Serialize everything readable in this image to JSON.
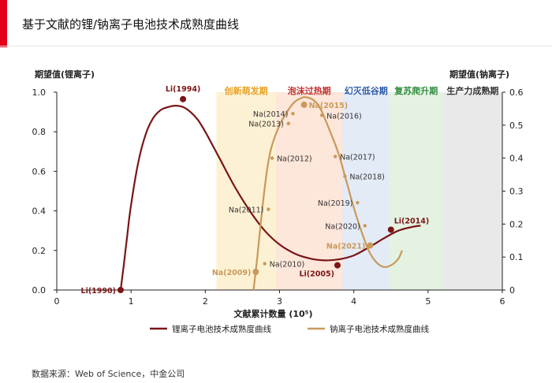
{
  "page": {
    "title": "基于文献的锂/钠离子电池技术成熟度曲线",
    "source": "数据来源：Web of Science，中金公司",
    "accent_color": "#e2001a"
  },
  "chart_data": {
    "type": "line",
    "xlabel": "文献累计数量 (10⁵)",
    "ylabel_left": "期望值(锂离子)",
    "ylabel_right": "期望值(钠离子)",
    "xlim": [
      0,
      6
    ],
    "ylim_left": [
      0,
      1.0
    ],
    "ylim_right": [
      0,
      0.6
    ],
    "x_ticks": [
      0,
      1,
      2,
      3,
      4,
      5,
      6
    ],
    "y_ticks_left": [
      0.0,
      0.2,
      0.4,
      0.6,
      0.8,
      1.0
    ],
    "y_ticks_right": [
      0,
      0.1,
      0.2,
      0.3,
      0.4,
      0.5,
      0.6
    ],
    "tick_labels_x": [
      "0",
      "1",
      "2",
      "3",
      "4",
      "5",
      "6"
    ],
    "tick_labels_left": [
      "0.0",
      "0.2",
      "0.4",
      "0.6",
      "0.8",
      "1.0"
    ],
    "tick_labels_right": [
      "0",
      "0.1",
      "0.2",
      "0.3",
      "0.4",
      "0.5",
      "0.6"
    ],
    "grid": false,
    "legend_position": "bottom",
    "phases": [
      {
        "name": "创新萌发期",
        "x_range": [
          2.15,
          2.95
        ],
        "color": "#fdf1d3",
        "label_color": "#e8a020"
      },
      {
        "name": "泡沫过热期",
        "x_range": [
          2.95,
          3.85
        ],
        "color": "#fde6da",
        "label_color": "#c03030"
      },
      {
        "name": "幻灭低谷期",
        "x_range": [
          3.85,
          4.48
        ],
        "color": "#e3ebf7",
        "label_color": "#2f5aa8"
      },
      {
        "name": "复苏爬升期",
        "x_range": [
          4.48,
          5.2
        ],
        "color": "#e4f2e2",
        "label_color": "#2e8b3a"
      },
      {
        "name": "生产力成熟期",
        "x_range": [
          5.2,
          6.0
        ],
        "color": "#e9e9e9",
        "label_color": "#333333"
      }
    ],
    "series": [
      {
        "name": "锂离子电池技术成熟度曲线",
        "axis": "left",
        "color": "#7a1515",
        "x": [
          0.86,
          0.9,
          0.95,
          1.0,
          1.1,
          1.2,
          1.3,
          1.4,
          1.5,
          1.6,
          1.7,
          1.8,
          1.9,
          2.0,
          2.1,
          2.2,
          2.4,
          2.6,
          2.8,
          3.0,
          3.2,
          3.4,
          3.6,
          3.8,
          4.0,
          4.2,
          4.4,
          4.6,
          4.8,
          4.9
        ],
        "y": [
          0.0,
          0.12,
          0.28,
          0.43,
          0.65,
          0.79,
          0.87,
          0.91,
          0.925,
          0.932,
          0.925,
          0.9,
          0.86,
          0.8,
          0.73,
          0.66,
          0.52,
          0.4,
          0.3,
          0.23,
          0.185,
          0.16,
          0.15,
          0.155,
          0.175,
          0.215,
          0.26,
          0.3,
          0.32,
          0.325
        ]
      },
      {
        "name": "钠离子电池技术成熟度曲线",
        "axis": "right",
        "color": "#c9995a",
        "x": [
          2.65,
          2.7,
          2.75,
          2.8,
          2.85,
          2.9,
          3.0,
          3.1,
          3.2,
          3.3,
          3.35,
          3.45,
          3.55,
          3.7,
          3.8,
          3.9,
          4.0,
          4.1,
          4.2,
          4.3,
          4.4,
          4.5,
          4.6,
          4.65
        ],
        "y": [
          0.0,
          0.1,
          0.21,
          0.31,
          0.39,
          0.44,
          0.5,
          0.54,
          0.57,
          0.583,
          0.585,
          0.577,
          0.55,
          0.47,
          0.41,
          0.33,
          0.25,
          0.18,
          0.12,
          0.085,
          0.07,
          0.075,
          0.095,
          0.12
        ]
      }
    ],
    "annotations": [
      {
        "text": "Li(1990)",
        "series": 0,
        "x": 0.86,
        "y": 0.0,
        "marker": true,
        "bold": true,
        "color": "#7a1515",
        "pos": "left"
      },
      {
        "text": "Li(1994)",
        "series": 0,
        "x": 1.7,
        "y": 0.965,
        "marker": true,
        "bold": true,
        "color": "#7a1515",
        "pos": "above"
      },
      {
        "text": "Li(2005)",
        "series": 0,
        "x": 3.78,
        "y": 0.125,
        "marker": true,
        "bold": true,
        "color": "#7a1515",
        "pos": "below-left"
      },
      {
        "text": "Li(2014)",
        "series": 0,
        "x": 4.5,
        "y": 0.305,
        "marker": true,
        "bold": true,
        "color": "#7a1515",
        "pos": "above-right"
      },
      {
        "text": "Na(2009)",
        "series": 1,
        "x": 2.68,
        "y": 0.055,
        "marker": true,
        "bold": true,
        "color": "#c9995a",
        "pos": "left"
      },
      {
        "text": "Na(2010)",
        "series": 1,
        "x": 2.8,
        "y": 0.08,
        "marker": true,
        "bold": false,
        "color": "#333333",
        "pos": "right"
      },
      {
        "text": "Na(2011)",
        "series": 1,
        "x": 2.85,
        "y": 0.245,
        "marker": true,
        "bold": false,
        "color": "#333333",
        "pos": "left"
      },
      {
        "text": "Na(2012)",
        "series": 1,
        "x": 2.9,
        "y": 0.4,
        "marker": true,
        "bold": false,
        "color": "#333333",
        "pos": "right"
      },
      {
        "text": "Na(2013)",
        "series": 1,
        "x": 3.12,
        "y": 0.505,
        "marker": true,
        "bold": false,
        "color": "#333333",
        "pos": "left"
      },
      {
        "text": "Na(2014)",
        "series": 1,
        "x": 3.18,
        "y": 0.535,
        "marker": true,
        "bold": false,
        "color": "#333333",
        "pos": "left"
      },
      {
        "text": "Na(2015)",
        "series": 1,
        "x": 3.33,
        "y": 0.562,
        "marker": true,
        "bold": true,
        "color": "#c9995a",
        "pos": "right"
      },
      {
        "text": "Na(2016)",
        "series": 1,
        "x": 3.57,
        "y": 0.53,
        "marker": true,
        "bold": false,
        "color": "#333333",
        "pos": "right"
      },
      {
        "text": "Na(2017)",
        "series": 1,
        "x": 3.75,
        "y": 0.405,
        "marker": true,
        "bold": false,
        "color": "#333333",
        "pos": "right"
      },
      {
        "text": "Na(2018)",
        "series": 1,
        "x": 3.88,
        "y": 0.345,
        "marker": true,
        "bold": false,
        "color": "#333333",
        "pos": "right"
      },
      {
        "text": "Na(2019)",
        "series": 1,
        "x": 4.05,
        "y": 0.265,
        "marker": true,
        "bold": false,
        "color": "#333333",
        "pos": "left"
      },
      {
        "text": "Na(2020)",
        "series": 1,
        "x": 4.15,
        "y": 0.195,
        "marker": true,
        "bold": false,
        "color": "#333333",
        "pos": "left"
      },
      {
        "text": "Na(2021)",
        "series": 1,
        "x": 4.22,
        "y": 0.135,
        "marker": true,
        "bold": true,
        "color": "#c9995a",
        "pos": "left"
      }
    ],
    "legend": [
      {
        "label": "锂离子电池技术成熟度曲线",
        "color": "#7a1515"
      },
      {
        "label": "钠离子电池技术成熟度曲线",
        "color": "#c9995a"
      }
    ]
  }
}
